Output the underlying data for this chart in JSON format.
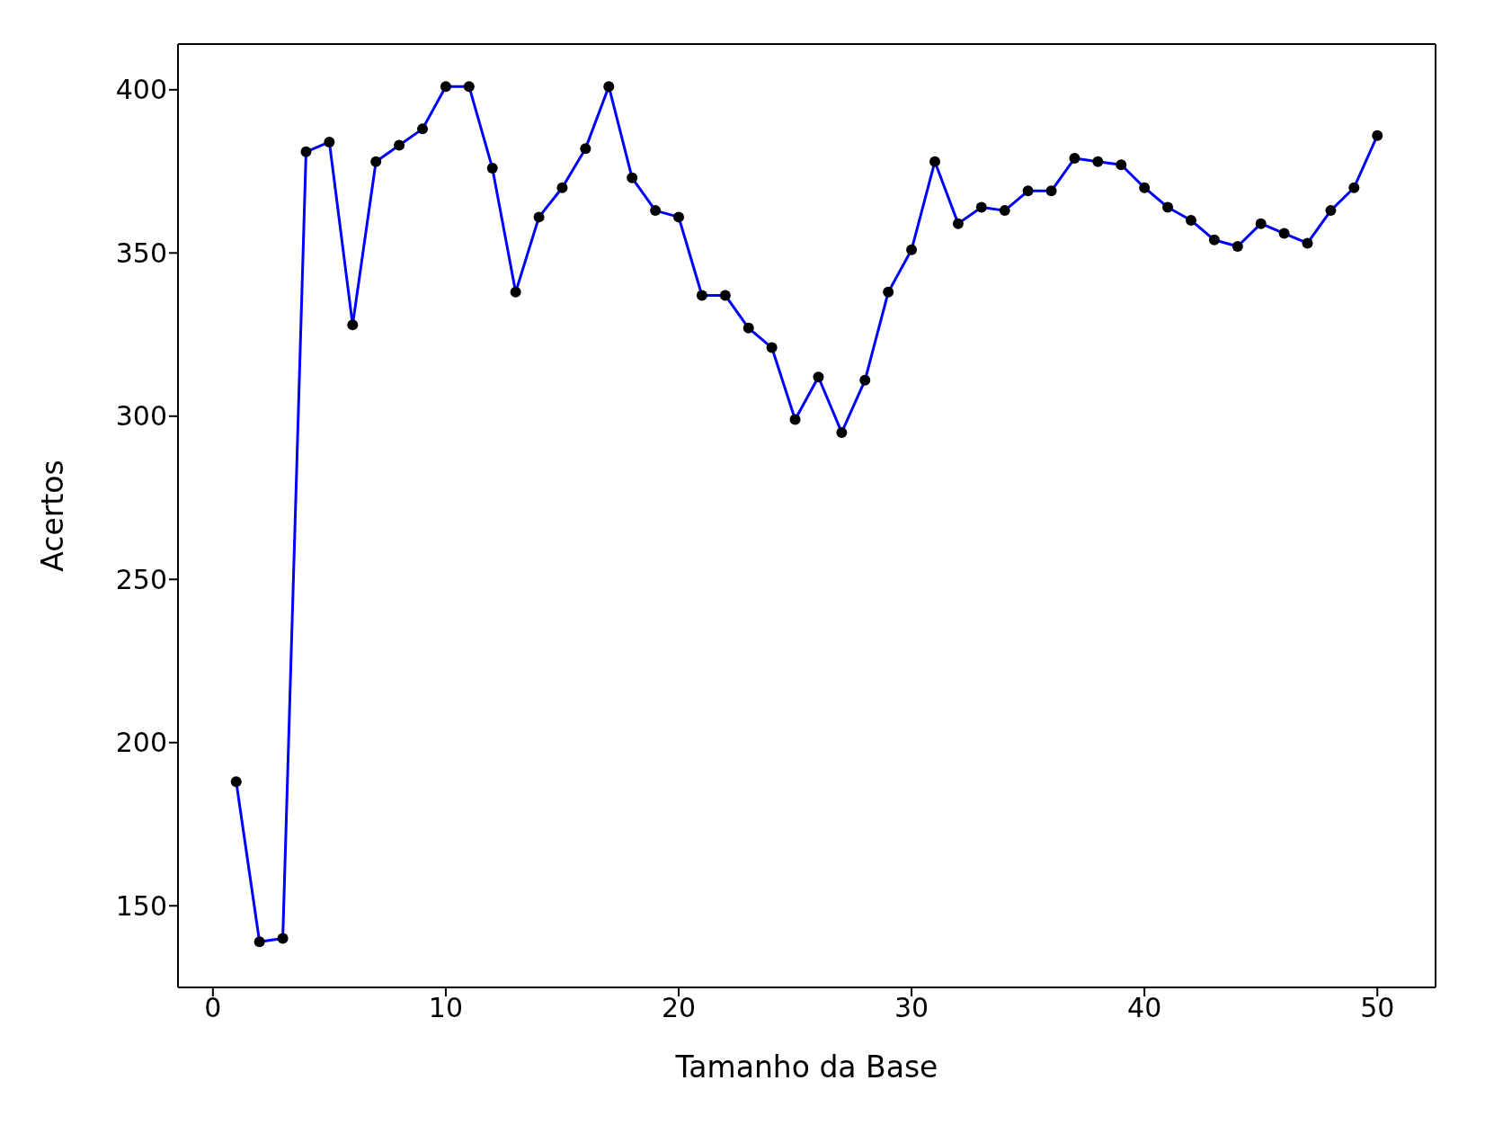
{
  "chart_data": {
    "type": "line",
    "xlabel": "Tamanho da Base",
    "ylabel": "Acertos",
    "x": [
      1,
      2,
      3,
      4,
      5,
      6,
      7,
      8,
      9,
      10,
      11,
      12,
      13,
      14,
      15,
      16,
      17,
      18,
      19,
      20,
      21,
      22,
      23,
      24,
      25,
      26,
      27,
      28,
      29,
      30,
      31,
      32,
      33,
      34,
      35,
      36,
      37,
      38,
      39,
      40,
      41,
      42,
      43,
      44,
      45,
      46,
      47,
      48,
      49,
      50
    ],
    "series": [
      {
        "color": "#0000ff",
        "colors": [
          "#000000",
          "#000000",
          "#000000",
          "#000000",
          "#000000",
          "#000000",
          "#000000",
          "#000000",
          "#000000",
          "#000000",
          "#000000",
          "#000000",
          "#000000",
          "#000000",
          "#000000",
          "#000000",
          "#000000",
          "#000000",
          "#000000",
          "#000000",
          "#000000",
          "#000000",
          "#000000",
          "#000000",
          "#000000",
          "#000000",
          "#000000",
          "#000000",
          "#000000",
          "#000000",
          "#000000",
          "#000000",
          "#000000",
          "#000000",
          "#000000",
          "#000000",
          "#000000",
          "#000000",
          "#000000",
          "#000000",
          "#000000",
          "#000000",
          "#000000",
          "#000000",
          "#000000",
          "#000000",
          "#000000",
          "#000000",
          "#000000",
          "#000000"
        ],
        "values": [
          188,
          139,
          140,
          381,
          384,
          328,
          378,
          383,
          388,
          401,
          401,
          376,
          338,
          361,
          370,
          382,
          401,
          373,
          363,
          361,
          337,
          337,
          327,
          321,
          299,
          312,
          295,
          311,
          338,
          351,
          378,
          359,
          364,
          363,
          369,
          369,
          379,
          378,
          377,
          370,
          364,
          360,
          354,
          352,
          359,
          356,
          353,
          363,
          370,
          386
        ]
      }
    ],
    "xlim": [
      -1.5,
      52.5
    ],
    "xticks": [
      0,
      10,
      20,
      30,
      40,
      50
    ],
    "ylim": [
      125,
      414
    ],
    "yticks": [
      150,
      200,
      250,
      300,
      350,
      400
    ],
    "grid": false,
    "legend": false,
    "marker": "circle",
    "line_style": "solid"
  }
}
